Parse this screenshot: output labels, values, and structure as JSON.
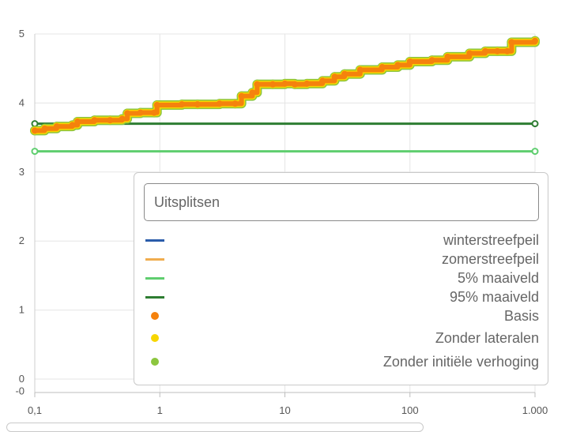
{
  "legend": {
    "search_placeholder": "Uitsplitsen",
    "items": [
      {
        "label": "winterstreefpeil",
        "kind": "line",
        "color": "#2a5caa"
      },
      {
        "label": "zomerstreefpeil",
        "kind": "line",
        "color": "#f0ad4e"
      },
      {
        "label": "5% maaiveld",
        "kind": "line",
        "color": "#5fce6f"
      },
      {
        "label": "95% maaiveld",
        "kind": "line",
        "color": "#2e7d32"
      },
      {
        "label": "Basis",
        "kind": "dot",
        "color": "#f5820d"
      },
      {
        "label": "Zonder lateralen",
        "kind": "dot",
        "color": "#f7d600"
      },
      {
        "label": "Zonder initiële verhoging",
        "kind": "dot",
        "color": "#8cc63f"
      }
    ]
  },
  "chart_data": {
    "type": "line",
    "x_scale": "log",
    "xlim": [
      0.1,
      1000
    ],
    "ylim": [
      0,
      5
    ],
    "x_ticks": [
      {
        "value": 0.1,
        "label": "0,1"
      },
      {
        "value": 1,
        "label": "1"
      },
      {
        "value": 10,
        "label": "10"
      },
      {
        "value": 100,
        "label": "100"
      },
      {
        "value": 1000,
        "label": "1.000"
      }
    ],
    "y_ticks": [
      {
        "value": 5,
        "label": "5"
      },
      {
        "value": 4,
        "label": "4"
      },
      {
        "value": 3,
        "label": "3"
      },
      {
        "value": 2,
        "label": "2"
      },
      {
        "value": 1,
        "label": "1"
      },
      {
        "value": 0,
        "label": "0"
      },
      {
        "value": -0.18,
        "label": "-0"
      }
    ],
    "grid": true,
    "series": [
      {
        "name": "5% maaiveld",
        "kind": "hline",
        "color": "#5fce6f",
        "points": [
          [
            0.1,
            3.3
          ],
          [
            1000,
            3.3
          ]
        ]
      },
      {
        "name": "95% maaiveld",
        "kind": "hline",
        "color": "#2e7d32",
        "points": [
          [
            0.1,
            3.7
          ],
          [
            1000,
            3.7
          ]
        ]
      },
      {
        "name": "Zonder initiële verhoging",
        "kind": "scatter",
        "color": "#8cc63f",
        "outline_only": true,
        "points": [
          [
            0.1,
            3.6
          ],
          [
            0.12,
            3.63
          ],
          [
            0.15,
            3.66
          ],
          [
            0.2,
            3.68
          ],
          [
            0.22,
            3.73
          ],
          [
            0.3,
            3.75
          ],
          [
            0.4,
            3.75
          ],
          [
            0.5,
            3.77
          ],
          [
            0.55,
            3.85
          ],
          [
            0.7,
            3.86
          ],
          [
            0.9,
            3.86
          ],
          [
            0.95,
            3.97
          ],
          [
            1.5,
            3.98
          ],
          [
            2,
            3.98
          ],
          [
            3,
            3.99
          ],
          [
            4,
            3.99
          ],
          [
            4.5,
            4.1
          ],
          [
            5.5,
            4.15
          ],
          [
            6,
            4.27
          ],
          [
            8,
            4.27
          ],
          [
            10,
            4.28
          ],
          [
            12,
            4.27
          ],
          [
            15,
            4.28
          ],
          [
            20,
            4.32
          ],
          [
            25,
            4.38
          ],
          [
            30,
            4.42
          ],
          [
            40,
            4.48
          ],
          [
            60,
            4.52
          ],
          [
            80,
            4.55
          ],
          [
            100,
            4.6
          ],
          [
            150,
            4.62
          ],
          [
            200,
            4.67
          ],
          [
            300,
            4.72
          ],
          [
            400,
            4.75
          ],
          [
            500,
            4.75
          ],
          [
            600,
            4.75
          ],
          [
            650,
            4.88
          ],
          [
            1000,
            4.9
          ]
        ]
      },
      {
        "name": "Zonder lateralen",
        "kind": "scatter",
        "color": "#f7d600",
        "outline_only": true,
        "points": [
          [
            0.1,
            3.6
          ],
          [
            0.12,
            3.63
          ],
          [
            0.15,
            3.66
          ],
          [
            0.2,
            3.68
          ],
          [
            0.22,
            3.73
          ],
          [
            0.3,
            3.75
          ],
          [
            0.4,
            3.75
          ],
          [
            0.5,
            3.77
          ],
          [
            0.55,
            3.85
          ],
          [
            0.7,
            3.86
          ],
          [
            0.9,
            3.86
          ],
          [
            0.95,
            3.97
          ],
          [
            1.5,
            3.98
          ],
          [
            2,
            3.98
          ],
          [
            3,
            3.99
          ],
          [
            4,
            3.99
          ],
          [
            4.5,
            4.1
          ],
          [
            5.5,
            4.15
          ],
          [
            6,
            4.27
          ],
          [
            8,
            4.27
          ],
          [
            10,
            4.28
          ],
          [
            12,
            4.27
          ],
          [
            15,
            4.28
          ],
          [
            20,
            4.32
          ],
          [
            25,
            4.38
          ],
          [
            30,
            4.42
          ],
          [
            40,
            4.48
          ],
          [
            60,
            4.52
          ],
          [
            80,
            4.55
          ],
          [
            100,
            4.6
          ],
          [
            150,
            4.62
          ],
          [
            200,
            4.67
          ],
          [
            300,
            4.72
          ],
          [
            400,
            4.75
          ],
          [
            500,
            4.75
          ],
          [
            600,
            4.75
          ],
          [
            650,
            4.88
          ],
          [
            1000,
            4.9
          ]
        ]
      },
      {
        "name": "Basis",
        "kind": "scatter",
        "color": "#f5820d",
        "points": [
          [
            0.1,
            3.6
          ],
          [
            0.12,
            3.63
          ],
          [
            0.15,
            3.66
          ],
          [
            0.2,
            3.68
          ],
          [
            0.22,
            3.73
          ],
          [
            0.3,
            3.75
          ],
          [
            0.4,
            3.75
          ],
          [
            0.5,
            3.77
          ],
          [
            0.55,
            3.85
          ],
          [
            0.7,
            3.86
          ],
          [
            0.9,
            3.86
          ],
          [
            0.95,
            3.97
          ],
          [
            1.5,
            3.98
          ],
          [
            2,
            3.98
          ],
          [
            3,
            3.99
          ],
          [
            4,
            3.99
          ],
          [
            4.5,
            4.1
          ],
          [
            5.5,
            4.15
          ],
          [
            6,
            4.27
          ],
          [
            8,
            4.27
          ],
          [
            10,
            4.28
          ],
          [
            12,
            4.27
          ],
          [
            15,
            4.28
          ],
          [
            20,
            4.32
          ],
          [
            25,
            4.38
          ],
          [
            30,
            4.42
          ],
          [
            40,
            4.48
          ],
          [
            60,
            4.52
          ],
          [
            80,
            4.55
          ],
          [
            100,
            4.6
          ],
          [
            150,
            4.62
          ],
          [
            200,
            4.67
          ],
          [
            300,
            4.72
          ],
          [
            400,
            4.75
          ],
          [
            500,
            4.75
          ],
          [
            600,
            4.75
          ],
          [
            650,
            4.88
          ],
          [
            1000,
            4.9
          ]
        ]
      }
    ]
  }
}
